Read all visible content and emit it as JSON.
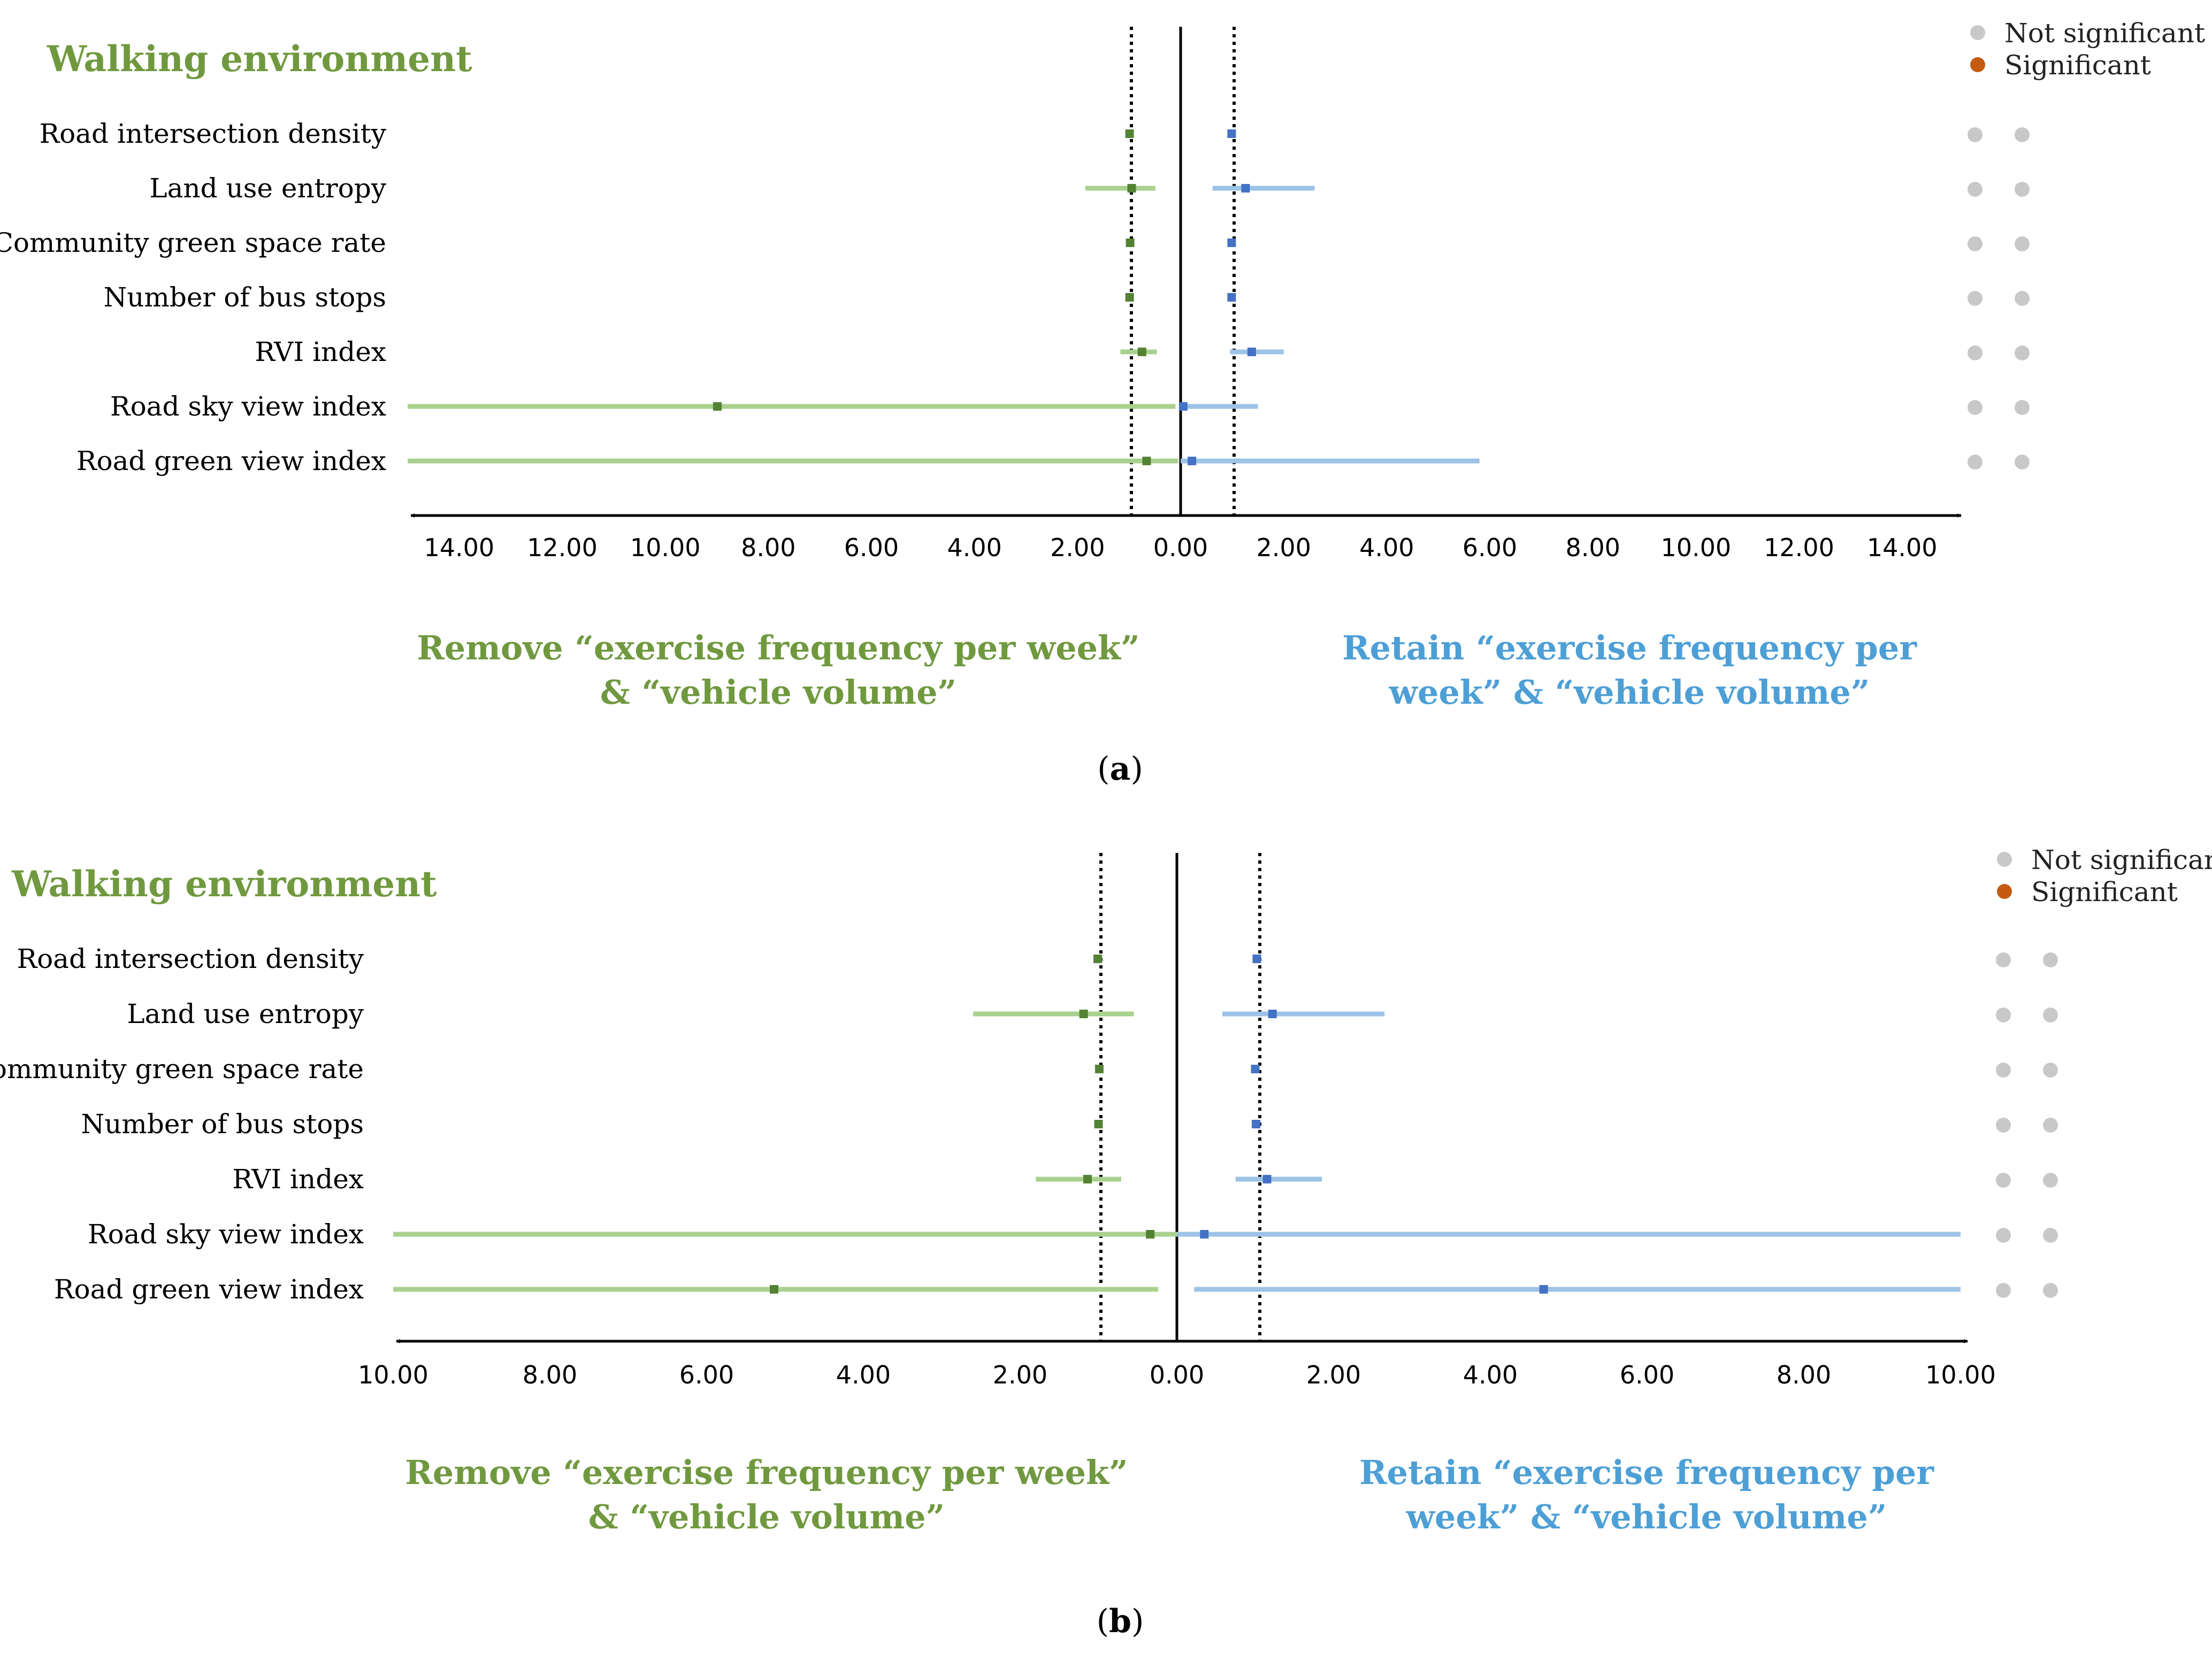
{
  "legend": {
    "not_significant": "Not significant",
    "significant": "Significant",
    "colors": {
      "not_significant": "#c8c8c8",
      "significant": "#c55a11"
    }
  },
  "colors": {
    "remove_line": "#a9d18e",
    "remove_marker": "#548235",
    "retain_line": "#9dc3e6",
    "retain_marker": "#4472c4",
    "title_green": "#70993f",
    "title_blue": "#4d9fd6"
  },
  "chart_data": [
    {
      "type": "forest-plot",
      "panel_label": "(a)",
      "panel_letter": "a",
      "title": "Walking environment",
      "xlim": [
        -15,
        15
      ],
      "tick_values": [
        -14,
        -12,
        -10,
        -8,
        -6,
        -4,
        -2,
        0,
        2,
        4,
        6,
        8,
        10,
        12,
        14
      ],
      "tick_labels": [
        "14.00",
        "12.00",
        "10.00",
        "8.00",
        "6.00",
        "4.00",
        "2.00",
        "0.00",
        "2.00",
        "4.00",
        "6.00",
        "8.00",
        "10.00",
        "12.00",
        "14.00"
      ],
      "reference_lines": [
        -1,
        1
      ],
      "left_label": [
        "Remove “exercise frequency per week”",
        "& “vehicle volume”"
      ],
      "right_label": [
        "Retain  “exercise frequency per",
        "week” & “vehicle volume”"
      ],
      "categories": [
        "Road intersection density",
        "Land use entropy",
        "Community green space rate",
        "Number of bus stops",
        "RVI index",
        "Road sky view index",
        "Road green view index"
      ],
      "series": [
        {
          "name": "Remove “exercise frequency per week” & “vehicle volume”",
          "side": "left",
          "estimates": [
            0.99,
            0.95,
            0.98,
            0.99,
            0.75,
            8.99,
            0.66
          ],
          "lower": [
            0.97,
            0.49,
            0.96,
            0.97,
            0.46,
            0.1,
            0.05
          ],
          "upper": [
            1.01,
            1.85,
            1.0,
            1.01,
            1.17,
            15.0,
            15.0
          ],
          "significance": [
            "Not significant",
            "Not significant",
            "Not significant",
            "Not significant",
            "Not significant",
            "Not significant",
            "Not significant"
          ]
        },
        {
          "name": "Retain “exercise frequency per week” & “vehicle volume”",
          "side": "right",
          "estimates": [
            0.99,
            1.26,
            0.99,
            0.99,
            1.38,
            0.05,
            0.22
          ],
          "lower": [
            0.97,
            0.62,
            0.97,
            0.97,
            0.96,
            0.0,
            0.0
          ],
          "upper": [
            1.01,
            2.6,
            1.01,
            1.01,
            2.0,
            1.5,
            5.8
          ],
          "significance": [
            "Not significant",
            "Not significant",
            "Not significant",
            "Not significant",
            "Not significant",
            "Not significant",
            "Not significant"
          ]
        }
      ]
    },
    {
      "type": "forest-plot",
      "panel_label": "(b)",
      "panel_letter": "b",
      "title": "Walking environment",
      "xlim": [
        -10,
        10
      ],
      "tick_values": [
        -10,
        -8,
        -6,
        -4,
        -2,
        0,
        2,
        4,
        6,
        8,
        10
      ],
      "tick_labels": [
        "10.00",
        "8.00",
        "6.00",
        "4.00",
        "2.00",
        "0.00",
        "2.00",
        "4.00",
        "6.00",
        "8.00",
        "10.00"
      ],
      "reference_lines": [
        -1,
        1
      ],
      "left_label": [
        "Remove “exercise frequency per week”",
        "& “vehicle volume”"
      ],
      "right_label": [
        "Retain  “exercise frequency per",
        "week” & “vehicle volume”"
      ],
      "categories": [
        "Road intersection density",
        "Land use entropy",
        "Community green space rate",
        "Number of bus stops",
        "RVI index",
        "Road sky view index",
        "Road green view index"
      ],
      "series": [
        {
          "name": "Remove “exercise frequency per week” & “vehicle volume”",
          "side": "left",
          "estimates": [
            1.01,
            1.19,
            0.99,
            1.0,
            1.14,
            0.34,
            5.14
          ],
          "lower": [
            0.99,
            0.55,
            0.97,
            0.98,
            0.71,
            0.0,
            0.24
          ],
          "upper": [
            1.03,
            2.6,
            1.01,
            1.02,
            1.8,
            10.0,
            10.0
          ],
          "significance": [
            "Not significant",
            "Not significant",
            "Not significant",
            "Not significant",
            "Not significant",
            "Not significant",
            "Not significant"
          ]
        },
        {
          "name": "Retain “exercise frequency per week” & “vehicle volume”",
          "side": "right",
          "estimates": [
            1.02,
            1.22,
            1.0,
            1.01,
            1.15,
            0.35,
            4.68
          ],
          "lower": [
            1.0,
            0.58,
            0.98,
            0.99,
            0.75,
            0.0,
            0.22
          ],
          "upper": [
            1.04,
            2.65,
            1.02,
            1.03,
            1.85,
            10.0,
            10.0
          ],
          "significance": [
            "Not significant",
            "Not significant",
            "Not significant",
            "Not significant",
            "Not significant",
            "Not significant",
            "Not significant"
          ]
        }
      ]
    }
  ]
}
